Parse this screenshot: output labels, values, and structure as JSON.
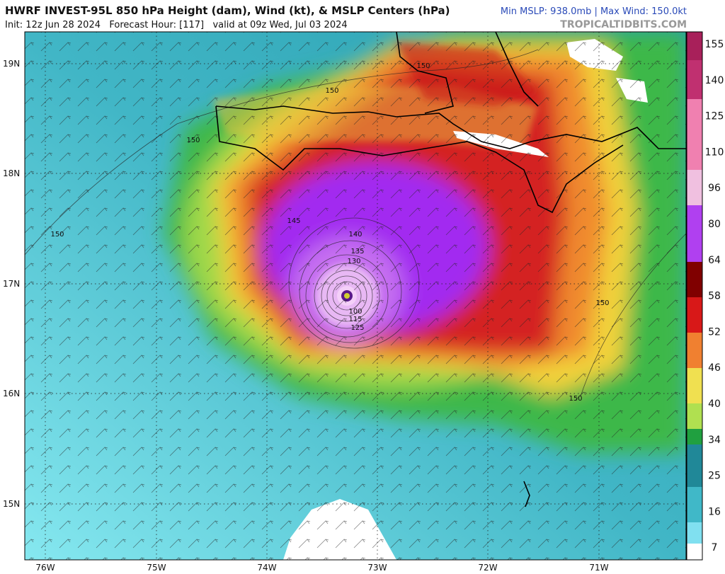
{
  "header": {
    "title": "HWRF INVEST-95L 850 hPa Height (dam), Wind (kt), & MSLP Centers (hPa)",
    "subtitle": "Init: 12z Jun 28 2024   Forecast Hour: [117]   valid at 09z Wed, Jul 03 2024",
    "stats": "Min MSLP: 938.0mb | Max Wind: 150.0kt",
    "credit": "TROPICALTIDBITS.COM"
  },
  "map": {
    "lat_labels": [
      "19N",
      "18N",
      "17N",
      "16N",
      "15N"
    ],
    "lon_labels": [
      "76W",
      "75W",
      "74W",
      "73W",
      "72W",
      "71W"
    ],
    "contour_labels": [
      150,
      150,
      150,
      150,
      150,
      150,
      145,
      140,
      135,
      130,
      100,
      115,
      125
    ]
  },
  "colorbar": {
    "labels": [
      155,
      140,
      125,
      110,
      96,
      80,
      64,
      58,
      52,
      46,
      40,
      34,
      25,
      16,
      7
    ]
  }
}
